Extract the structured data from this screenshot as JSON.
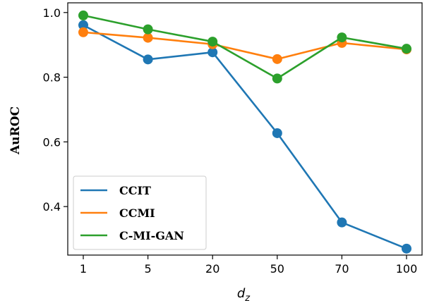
{
  "chart_data": {
    "type": "line",
    "categories": [
      "1",
      "5",
      "20",
      "50",
      "70",
      "100"
    ],
    "xlabel_main": "d",
    "xlabel_sub": "z",
    "ylabel": "AuROC",
    "ylim": [
      0.25,
      1.03
    ],
    "yticks": [
      0.4,
      0.6,
      0.8,
      1.0
    ],
    "ytick_labels": [
      "0.4",
      "0.6",
      "0.8",
      "1.0"
    ],
    "grid": false,
    "legend_position": "lower-left",
    "series": [
      {
        "name": "CCIT",
        "color": "#1f77b4",
        "values": [
          0.961,
          0.855,
          0.877,
          0.627,
          0.351,
          0.27
        ]
      },
      {
        "name": "CCMI",
        "color": "#ff7f0e",
        "values": [
          0.939,
          0.922,
          0.902,
          0.856,
          0.906,
          0.886
        ]
      },
      {
        "name": "C-MI-GAN",
        "color": "#2ca02c",
        "values": [
          0.991,
          0.948,
          0.91,
          0.796,
          0.923,
          0.888
        ]
      }
    ]
  }
}
